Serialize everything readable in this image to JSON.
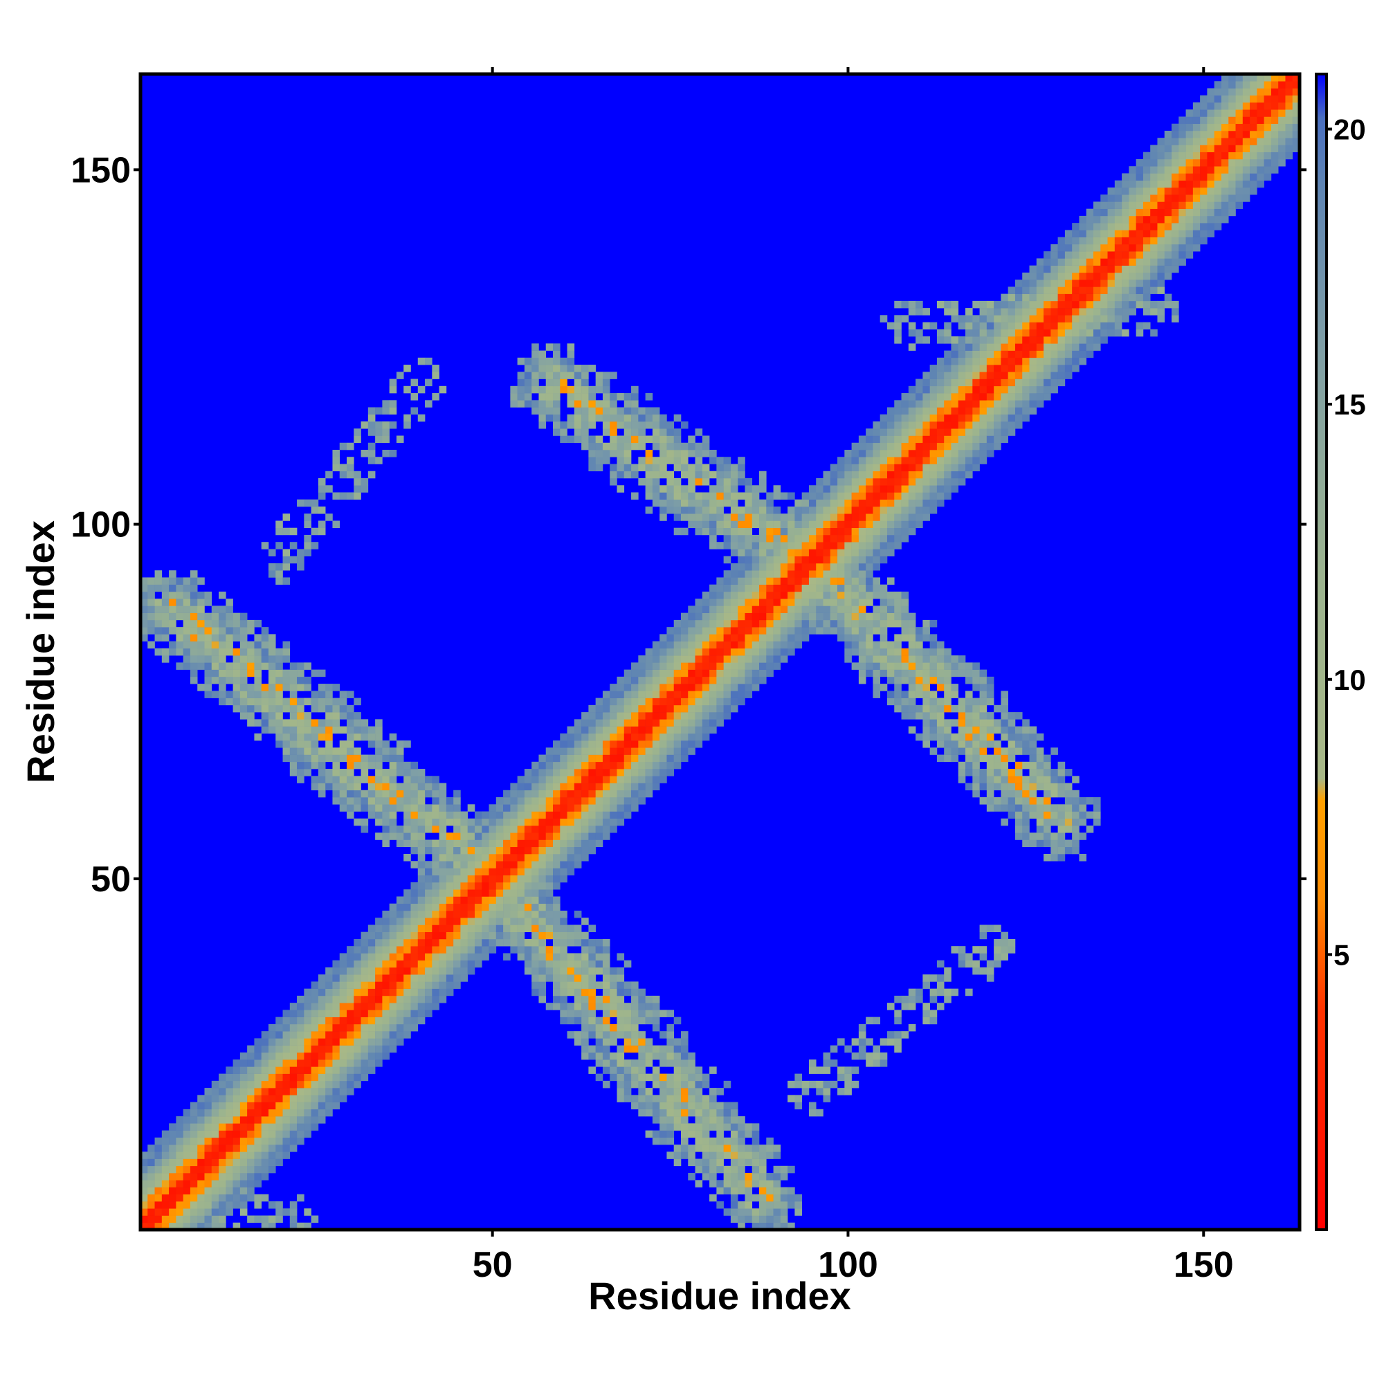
{
  "chart_data": {
    "type": "heatmap",
    "title": "",
    "xlabel": "Residue index",
    "ylabel": "Residue index",
    "xlim": [
      0.5,
      163.5
    ],
    "ylim": [
      0.5,
      163.5
    ],
    "n_residues": 163,
    "x_ticks": [
      50,
      100,
      150
    ],
    "x_tick_labels": [
      "50",
      "100",
      "150"
    ],
    "y_ticks": [
      50,
      100,
      150
    ],
    "y_tick_labels": [
      "50",
      "100",
      "150"
    ],
    "colorbar": {
      "range": [
        0,
        21
      ],
      "ticks": [
        5,
        10,
        15,
        20
      ],
      "tick_labels": [
        "5",
        "10",
        "15",
        "20"
      ],
      "color_stops": [
        {
          "value": 0,
          "color": "#ff0000"
        },
        {
          "value": 4,
          "color": "#ff3300"
        },
        {
          "value": 6,
          "color": "#ff8c00"
        },
        {
          "value": 7.8,
          "color": "#ffa000"
        },
        {
          "value": 8.2,
          "color": "#a8b887"
        },
        {
          "value": 12,
          "color": "#9bb38f"
        },
        {
          "value": 16,
          "color": "#7f9fa6"
        },
        {
          "value": 19,
          "color": "#5e84b3"
        },
        {
          "value": 20.2,
          "color": "#4a6fbf"
        },
        {
          "value": 21,
          "color": "#0000ff"
        }
      ]
    },
    "background_value": 21,
    "background_color": "#0000ff",
    "features": [
      {
        "name": "diagonal",
        "from": [
          1,
          1
        ],
        "to": [
          163,
          163
        ],
        "core_value": 2,
        "half_width": 8
      },
      {
        "name": "antiparallel contact band 1",
        "from": [
          5,
          88
        ],
        "to": [
          48,
          52
        ]
      },
      {
        "name": "antiparallel contact band 2",
        "from": [
          52,
          48
        ],
        "to": [
          88,
          5
        ]
      },
      {
        "name": "antiparallel contact band 3",
        "from": [
          58,
          120
        ],
        "to": [
          98,
          92
        ]
      },
      {
        "name": "antiparallel contact band 4",
        "from": [
          92,
          98
        ],
        "to": [
          130,
          58
        ]
      },
      {
        "name": "diffuse contact patch 1",
        "from": [
          20,
          95
        ],
        "to": [
          40,
          120
        ]
      },
      {
        "name": "diffuse contact patch 2",
        "from": [
          95,
          20
        ],
        "to": [
          120,
          40
        ]
      },
      {
        "name": "diffuse contact patch 3",
        "from": [
          108,
          128
        ],
        "to": [
          143,
          130
        ]
      },
      {
        "name": "diffuse contact patch 4",
        "from": [
          1,
          5
        ],
        "to": [
          22,
          2
        ]
      }
    ]
  }
}
